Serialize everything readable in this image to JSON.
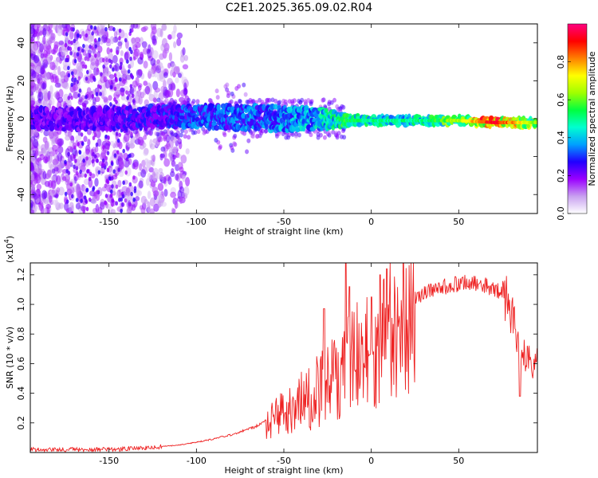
{
  "title": "C2E1.2025.365.09.02.R04",
  "chart_data": [
    {
      "type": "heatmap",
      "name": "spectrogram",
      "xlabel": "Height of straight line (km)",
      "ylabel": "Frequency (Hz)",
      "xlim": [
        -195,
        95
      ],
      "ylim": [
        -50,
        50
      ],
      "xticks": [
        -150,
        -100,
        -50,
        0,
        50
      ],
      "yticks": [
        -40,
        -20,
        0,
        20,
        40
      ],
      "colorbar": {
        "label": "Normalized spectral amplitude",
        "range": [
          0,
          1
        ],
        "ticks": [
          0.0,
          0.2,
          0.4,
          0.6,
          0.8
        ],
        "tick_labels": [
          "0.0",
          "0.2",
          "0.4",
          "0.6",
          "0.8"
        ],
        "colors": [
          "#ffffff",
          "#c8a0f0",
          "#9a00ff",
          "#2000ff",
          "#00a0ff",
          "#00ffd0",
          "#00ff40",
          "#a0ff00",
          "#ffff00",
          "#ff8000",
          "#ff0000",
          "#ff0080"
        ]
      },
      "center_band": [
        {
          "x": -195,
          "freq": 0,
          "width": 8,
          "amp": 0.25
        },
        {
          "x": -150,
          "freq": 0,
          "width": 8,
          "amp": 0.25
        },
        {
          "x": -120,
          "freq": 1,
          "width": 8,
          "amp": 0.3
        },
        {
          "x": -100,
          "freq": 1,
          "width": 8,
          "amp": 0.35
        },
        {
          "x": -80,
          "freq": 1,
          "width": 9,
          "amp": 0.35
        },
        {
          "x": -50,
          "freq": 0,
          "width": 9,
          "amp": 0.4
        },
        {
          "x": -30,
          "freq": 0,
          "width": 8,
          "amp": 0.45
        },
        {
          "x": -15,
          "freq": -1,
          "width": 4,
          "amp": 0.55
        },
        {
          "x": 0,
          "freq": -1,
          "width": 3,
          "amp": 0.5
        },
        {
          "x": 30,
          "freq": -1,
          "width": 3,
          "amp": 0.5
        },
        {
          "x": 50,
          "freq": -1,
          "width": 3,
          "amp": 0.65
        },
        {
          "x": 70,
          "freq": -2,
          "width": 3,
          "amp": 0.95
        },
        {
          "x": 95,
          "freq": -2,
          "width": 3,
          "amp": 0.6
        }
      ]
    },
    {
      "type": "line",
      "name": "snr",
      "xlabel": "Height of straight line (km)",
      "ylabel": "SNR (10 * v/v)",
      "multiplier_label": "(x10",
      "multiplier_exp": "4",
      "multiplier_close": ")",
      "xlim": [
        -195,
        95
      ],
      "ylim": [
        0,
        1.28
      ],
      "xticks": [
        -150,
        -100,
        -50,
        0,
        50
      ],
      "yticks": [
        0.2,
        0.4,
        0.6,
        0.8,
        1.0,
        1.2
      ],
      "ytick_labels": [
        "0.2",
        "0.4",
        "0.6",
        "0.8",
        "1.0",
        "1.2"
      ],
      "color": "#ee2222",
      "envelope": [
        {
          "x": -195,
          "y": 0.02
        },
        {
          "x": -150,
          "y": 0.02
        },
        {
          "x": -130,
          "y": 0.03
        },
        {
          "x": -110,
          "y": 0.05
        },
        {
          "x": -95,
          "y": 0.08
        },
        {
          "x": -80,
          "y": 0.12
        },
        {
          "x": -65,
          "y": 0.18
        },
        {
          "x": -55,
          "y": 0.25
        },
        {
          "x": -45,
          "y": 0.34
        },
        {
          "x": -35,
          "y": 0.42
        },
        {
          "x": -25,
          "y": 0.5
        },
        {
          "x": -18,
          "y": 0.58
        },
        {
          "x": -12,
          "y": 0.68
        },
        {
          "x": -5,
          "y": 0.75
        },
        {
          "x": 5,
          "y": 0.82
        },
        {
          "x": 15,
          "y": 0.94
        },
        {
          "x": 25,
          "y": 1.04
        },
        {
          "x": 35,
          "y": 1.1
        },
        {
          "x": 45,
          "y": 1.13
        },
        {
          "x": 55,
          "y": 1.15
        },
        {
          "x": 65,
          "y": 1.13
        },
        {
          "x": 72,
          "y": 1.1
        },
        {
          "x": 78,
          "y": 1.02
        },
        {
          "x": 82,
          "y": 0.86
        },
        {
          "x": 86,
          "y": 0.66
        },
        {
          "x": 90,
          "y": 0.62
        },
        {
          "x": 95,
          "y": 0.6
        }
      ],
      "spikes": [
        {
          "x": -14.5,
          "y": 1.28
        },
        {
          "x": -12.5,
          "y": 1.12
        },
        {
          "x": 9,
          "y": 1.24
        },
        {
          "x": 0,
          "y": 1.05
        },
        {
          "x": -27,
          "y": 0.97
        },
        {
          "x": 5,
          "y": 1.2
        },
        {
          "x": 85,
          "y": 0.38
        }
      ]
    }
  ]
}
